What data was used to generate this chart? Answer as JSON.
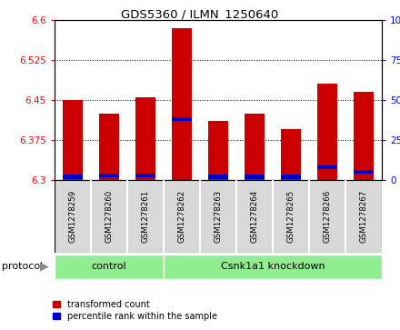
{
  "title": "GDS5360 / ILMN_1250640",
  "samples": [
    "GSM1278259",
    "GSM1278260",
    "GSM1278261",
    "GSM1278262",
    "GSM1278263",
    "GSM1278264",
    "GSM1278265",
    "GSM1278266",
    "GSM1278267"
  ],
  "transformed_counts": [
    6.45,
    6.425,
    6.455,
    6.585,
    6.41,
    6.425,
    6.395,
    6.48,
    6.465
  ],
  "percentile_ranks": [
    2,
    3,
    3,
    38,
    2,
    2,
    2,
    8,
    5
  ],
  "ymin": 6.3,
  "ymax": 6.6,
  "yticks": [
    6.3,
    6.375,
    6.45,
    6.525,
    6.6
  ],
  "y2ticks": [
    0,
    25,
    50,
    75,
    100
  ],
  "bar_color": "#cc0000",
  "percentile_color": "#0000cc",
  "plot_bg": "#ffffff",
  "box_facecolor": "#d8d8d8",
  "green_color": "#90ee90",
  "control_label": "control",
  "knockdown_label": "Csnk1a1 knockdown",
  "protocol_label": "protocol",
  "legend_items": [
    {
      "label": "transformed count",
      "color": "#cc0000"
    },
    {
      "label": "percentile rank within the sample",
      "color": "#0000cc"
    }
  ],
  "bar_width": 0.55,
  "n_control": 3,
  "n_knockdown": 6
}
